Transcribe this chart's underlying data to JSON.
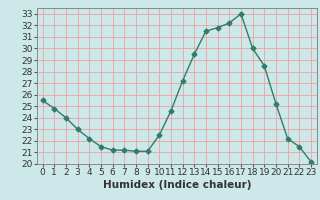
{
  "x": [
    0,
    1,
    2,
    3,
    4,
    5,
    6,
    7,
    8,
    9,
    10,
    11,
    12,
    13,
    14,
    15,
    16,
    17,
    18,
    19,
    20,
    21,
    22,
    23
  ],
  "y": [
    25.5,
    24.8,
    24.0,
    23.0,
    22.2,
    21.5,
    21.2,
    21.2,
    21.1,
    21.1,
    22.5,
    24.6,
    27.2,
    29.5,
    31.5,
    31.8,
    32.2,
    33.0,
    30.0,
    28.5,
    25.2,
    22.2,
    21.5,
    20.2
  ],
  "line_color": "#2e7d6e",
  "marker": "D",
  "marker_size": 2.5,
  "background_color": "#cce8e8",
  "grid_color": "#f0a0a0",
  "xlabel": "Humidex (Indice chaleur)",
  "ylim": [
    20,
    33.5
  ],
  "xlim": [
    -0.5,
    23.5
  ],
  "yticks": [
    20,
    21,
    22,
    23,
    24,
    25,
    26,
    27,
    28,
    29,
    30,
    31,
    32,
    33
  ],
  "xticks": [
    0,
    1,
    2,
    3,
    4,
    5,
    6,
    7,
    8,
    9,
    10,
    11,
    12,
    13,
    14,
    15,
    16,
    17,
    18,
    19,
    20,
    21,
    22,
    23
  ],
  "tick_fontsize": 6.5,
  "label_fontsize": 7.5
}
